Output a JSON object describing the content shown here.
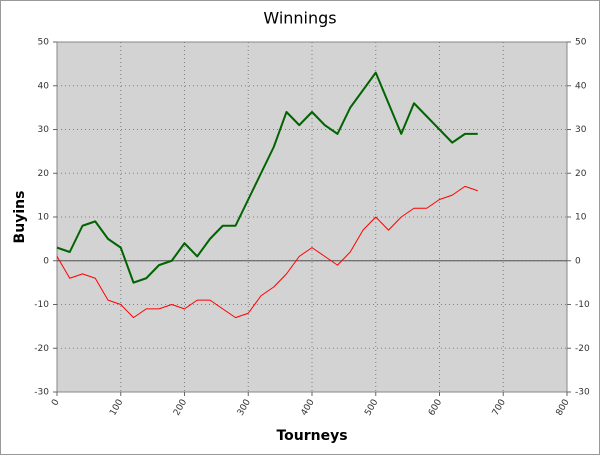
{
  "chart_data": {
    "type": "line",
    "title": "Winnings",
    "x_label": "Tourneys",
    "y_label": "Buyins",
    "x": [
      0,
      20,
      40,
      60,
      80,
      100,
      120,
      140,
      160,
      180,
      200,
      220,
      240,
      260,
      280,
      300,
      320,
      340,
      360,
      380,
      400,
      420,
      440,
      460,
      480,
      500,
      520,
      540,
      560,
      580,
      600,
      620,
      640,
      660
    ],
    "series": [
      {
        "color": "#006400",
        "values": [
          3,
          2,
          8,
          9,
          5,
          3,
          -5,
          -4,
          -1,
          0,
          4,
          1,
          5,
          8,
          8,
          14,
          20,
          26,
          34,
          31,
          34,
          31,
          29,
          35,
          39,
          43,
          36,
          29,
          36,
          33,
          30,
          27,
          29,
          29
        ]
      },
      {
        "color": "#ff0000",
        "values": [
          1,
          -4,
          -3,
          -4,
          -9,
          -10,
          -13,
          -11,
          -11,
          -10,
          -11,
          -9,
          -9,
          -11,
          -13,
          -12,
          -8,
          -6,
          -3,
          1,
          3,
          1,
          -1,
          2,
          7,
          10,
          7,
          10,
          12,
          12,
          14,
          15,
          17,
          16
        ]
      }
    ],
    "xlim": [
      0,
      800
    ],
    "xticks": [
      0,
      100,
      200,
      300,
      400,
      500,
      600,
      700,
      800
    ],
    "ylim": [
      -30,
      50
    ],
    "yticks": [
      -30,
      -20,
      -10,
      0,
      10,
      20,
      30,
      40,
      50
    ],
    "y2lim": [
      -30,
      50
    ],
    "y2ticks": [
      -30,
      -20,
      -10,
      0,
      10,
      20,
      30,
      40,
      50
    ],
    "grid": true
  }
}
